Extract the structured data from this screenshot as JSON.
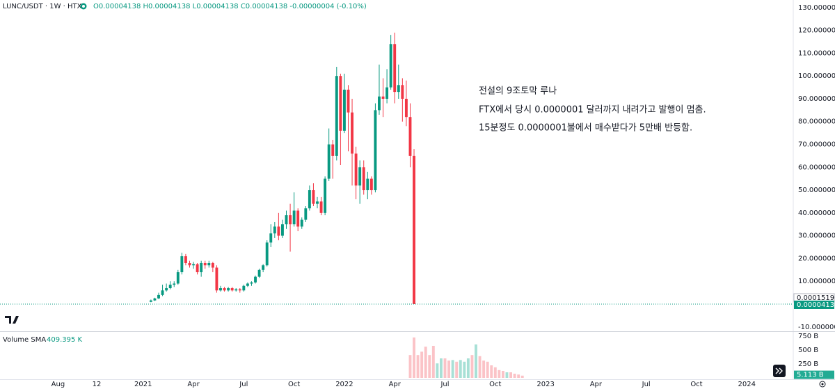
{
  "chart_data": [
    {
      "type": "candlestick",
      "title": "LUNC/USDT · 1W · HTX",
      "subtitle": "O0.00004138 H0.00004138 L0.00004138 C0.00004138 -0.00000004 (-0.10%)",
      "annotations": [
        "전설의 9조토막 루나",
        "FTX에서 당시 0.0000001 달러까지 내려가고 발행이 멈춤.",
        "15분정도 0.0000001불에서 매수받다가 5만배 반등함."
      ],
      "up_color": "#089981",
      "down_color": "#f23645",
      "x": [
        2,
        3,
        4,
        5,
        6,
        7,
        8,
        9,
        10,
        11,
        12,
        13,
        14,
        15,
        16,
        17,
        18,
        19,
        20,
        21,
        22,
        23,
        24,
        25,
        26,
        27,
        28,
        29,
        30,
        31,
        32,
        33,
        34,
        35,
        36,
        37,
        38,
        39,
        40,
        41,
        42,
        43,
        44,
        45,
        46,
        47,
        48,
        49,
        50,
        51,
        52,
        53,
        54,
        55,
        56,
        57,
        58,
        59,
        60,
        61,
        62,
        63,
        64,
        65,
        66,
        67,
        68,
        69,
        70
      ],
      "open": [
        1,
        1.6,
        2.5,
        4,
        6,
        7,
        8.5,
        9,
        14,
        21,
        18,
        17,
        17.5,
        14,
        18,
        17,
        18,
        16,
        6,
        7,
        6,
        7,
        6,
        6.5,
        6,
        8,
        9,
        9.5,
        12,
        15,
        17,
        27,
        31,
        34,
        30,
        35,
        39,
        35,
        41,
        34,
        37,
        42,
        50,
        44,
        45,
        40,
        55,
        70,
        65,
        100,
        76,
        94,
        84,
        66,
        52,
        60,
        50,
        55,
        50,
        85,
        91,
        90,
        95,
        114,
        93,
        96,
        90,
        82,
        65
      ],
      "high": [
        2,
        2.8,
        5,
        8.5,
        9,
        10,
        10,
        15,
        22.5,
        22,
        19,
        18.5,
        18,
        19,
        19,
        19,
        18.5,
        17,
        8,
        7.5,
        7.5,
        7.5,
        7,
        7,
        8.5,
        9.5,
        10,
        12.5,
        15.5,
        17.5,
        28,
        35,
        36,
        40,
        37,
        41,
        44,
        49,
        42,
        38,
        43,
        52,
        53,
        47,
        47,
        56,
        77,
        72,
        104,
        101,
        101,
        96,
        90,
        69,
        63,
        63,
        58,
        56,
        88,
        105,
        99,
        103,
        118,
        119,
        105,
        99,
        98,
        88,
        68
      ],
      "low": [
        0.8,
        1.4,
        2.2,
        3.5,
        5.5,
        6.5,
        7.5,
        8.5,
        13,
        17,
        16,
        15.5,
        13,
        12,
        15.5,
        16,
        14,
        5,
        5.5,
        5.5,
        5.5,
        5.5,
        5.5,
        5,
        5.5,
        7.5,
        8,
        9,
        11.5,
        14,
        16.5,
        25,
        29,
        28,
        29,
        33,
        23,
        34,
        32,
        33,
        36,
        41,
        43,
        42,
        39,
        39,
        54,
        55,
        63,
        61,
        75,
        67,
        52,
        46,
        44,
        48,
        46,
        48,
        49,
        83,
        82,
        88,
        94,
        88,
        90,
        80,
        78,
        60,
        0.0001
      ],
      "close": [
        1.6,
        2.5,
        4,
        6,
        7,
        8.5,
        9,
        14,
        21,
        18,
        17,
        17.5,
        14,
        18,
        17,
        18,
        16,
        6,
        7,
        6,
        7,
        6,
        6.5,
        6,
        8,
        9,
        9.5,
        12,
        15,
        17,
        27,
        31,
        34,
        30,
        35,
        39,
        35,
        41,
        34,
        37,
        42,
        50,
        44,
        45,
        40,
        55,
        70,
        65,
        100,
        76,
        94,
        84,
        66,
        52,
        60,
        50,
        55,
        50,
        85,
        91,
        90,
        95,
        114,
        93,
        96,
        90,
        82,
        65,
        0.00015191
      ],
      "price_lines": [
        0.00015191,
        4.138e-05
      ],
      "xlim": [
        -37,
        168
      ],
      "ylim": [
        -11.9,
        133.3
      ],
      "yticks": [
        {
          "value": 130,
          "label": "130.00000000"
        },
        {
          "value": 120,
          "label": "120.00000000"
        },
        {
          "value": 110,
          "label": "110.00000000"
        },
        {
          "value": 100,
          "label": "100.00000000"
        },
        {
          "value": 90,
          "label": "90.00000000"
        },
        {
          "value": 80,
          "label": "80.00000000"
        },
        {
          "value": 70,
          "label": "70.00000000"
        },
        {
          "value": 60,
          "label": "60.00000000"
        },
        {
          "value": 50,
          "label": "50.00000000"
        },
        {
          "value": 40,
          "label": "40.00000000"
        },
        {
          "value": 30,
          "label": "30.00000000"
        },
        {
          "value": 20,
          "label": "20.00000000"
        },
        {
          "value": 10,
          "label": "10.00000000"
        },
        {
          "value": -10,
          "label": "-10.00000000"
        }
      ],
      "xticks": [
        {
          "value": -22,
          "label": "Aug"
        },
        {
          "value": -12,
          "label": "12"
        },
        {
          "value": 0,
          "label": "2021"
        },
        {
          "value": 13,
          "label": "Apr"
        },
        {
          "value": 26,
          "label": "Jul"
        },
        {
          "value": 39,
          "label": "Oct"
        },
        {
          "value": 52,
          "label": "2022"
        },
        {
          "value": 65,
          "label": "Apr"
        },
        {
          "value": 78,
          "label": "Jul"
        },
        {
          "value": 91,
          "label": "Oct"
        },
        {
          "value": 104,
          "label": "2023"
        },
        {
          "value": 117,
          "label": "Apr"
        },
        {
          "value": 130,
          "label": "Jul"
        },
        {
          "value": 143,
          "label": "Oct"
        },
        {
          "value": 156,
          "label": "2024"
        }
      ],
      "grid": false
    },
    {
      "type": "bar",
      "title": "Volume SMA",
      "sma_value": "409.395 K",
      "x": [
        69,
        70,
        71,
        72,
        73,
        74,
        75,
        76,
        77,
        78,
        79,
        80,
        81,
        82,
        83,
        84,
        85,
        86,
        87,
        88,
        89,
        90,
        91,
        92,
        93,
        94,
        95,
        96,
        97,
        98
      ],
      "values": [
        410,
        725,
        410,
        470,
        560,
        410,
        575,
        260,
        350,
        350,
        310,
        320,
        290,
        320,
        290,
        350,
        410,
        600,
        390,
        310,
        290,
        225,
        190,
        140,
        125,
        100,
        100,
        75,
        60,
        40
      ],
      "colors": [
        "#fbc3c7",
        "#fbc3c7",
        "#fbc3c7",
        "#fbc3c7",
        "#fbc3c7",
        "#fbc3c7",
        "#fbc3c7",
        "#a8e0d6",
        "#a8e0d6",
        "#fbc3c7",
        "#fbc3c7",
        "#a8e0d6",
        "#fbc3c7",
        "#a8e0d6",
        "#a8e0d6",
        "#a8e0d6",
        "#fbc3c7",
        "#a8e0d6",
        "#fbc3c7",
        "#fbc3c7",
        "#fbc3c7",
        "#fbc3c7",
        "#fbc3c7",
        "#fbc3c7",
        "#fbc3c7",
        "#a8e0d6",
        "#fbc3c7",
        "#fbc3c7",
        "#fbc3c7",
        "#fbc3c7"
      ],
      "last_value": {
        "value": 5.113,
        "label": "5.113 B"
      },
      "ylim": [
        -25,
        812
      ],
      "yticks": [
        {
          "value": 750,
          "label": "750 B"
        },
        {
          "value": 500,
          "label": "500 B"
        },
        {
          "value": 250,
          "label": "250 B"
        }
      ]
    }
  ]
}
